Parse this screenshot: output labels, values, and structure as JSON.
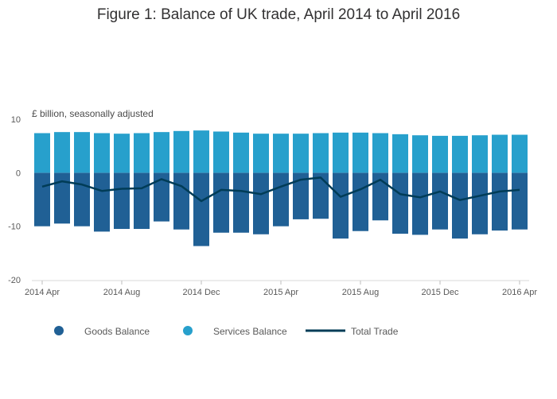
{
  "chart_data": {
    "type": "bar",
    "title": "Figure 1: Balance of UK trade, April 2014 to April 2016",
    "unit_label": "£ billion, seasonally adjusted",
    "ylim": [
      -20,
      10
    ],
    "y_ticks": [
      10,
      0,
      -10,
      -20
    ],
    "y_tick_labels": [
      "10",
      "0",
      "-10",
      "-20"
    ],
    "x_tick_labels": [
      "2014 Apr",
      "2014 Aug",
      "2014 Dec",
      "2015 Apr",
      "2015 Aug",
      "2015 Dec",
      "2016 Apr"
    ],
    "x_tick_indices": [
      0,
      4,
      8,
      12,
      16,
      20,
      24
    ],
    "categories": [
      "2014 Apr",
      "2014 May",
      "2014 Jun",
      "2014 Jul",
      "2014 Aug",
      "2014 Sep",
      "2014 Oct",
      "2014 Nov",
      "2014 Dec",
      "2015 Jan",
      "2015 Feb",
      "2015 Mar",
      "2015 Apr",
      "2015 May",
      "2015 Jun",
      "2015 Jul",
      "2015 Aug",
      "2015 Sep",
      "2015 Oct",
      "2015 Nov",
      "2015 Dec",
      "2016 Jan",
      "2016 Feb",
      "2016 Mar",
      "2016 Apr"
    ],
    "stacked": true,
    "grid": false,
    "legend_position": "bottom",
    "series": [
      {
        "name": "Goods Balance",
        "type": "bar",
        "color": "#206095",
        "values": [
          -10.0,
          -9.5,
          -10.0,
          -11.0,
          -10.5,
          -10.5,
          -9.1,
          -10.6,
          -13.7,
          -11.2,
          -11.2,
          -11.5,
          -10.0,
          -8.7,
          -8.6,
          -12.3,
          -10.9,
          -8.9,
          -11.4,
          -11.6,
          -10.6,
          -12.3,
          -11.5,
          -10.8,
          -10.6
        ]
      },
      {
        "name": "Services Balance",
        "type": "bar",
        "color": "#27a0cc",
        "values": [
          7.4,
          7.6,
          7.6,
          7.4,
          7.3,
          7.4,
          7.6,
          7.8,
          7.9,
          7.7,
          7.5,
          7.3,
          7.3,
          7.3,
          7.4,
          7.5,
          7.5,
          7.4,
          7.2,
          7.0,
          6.9,
          6.9,
          7.0,
          7.1,
          7.1
        ]
      },
      {
        "name": "Total Trade",
        "type": "line",
        "color": "#003c57",
        "values": [
          -2.6,
          -1.6,
          -2.2,
          -3.4,
          -3.0,
          -2.9,
          -1.2,
          -2.5,
          -5.3,
          -3.2,
          -3.4,
          -4.0,
          -2.6,
          -1.3,
          -0.9,
          -4.5,
          -3.1,
          -1.3,
          -4.0,
          -4.6,
          -3.5,
          -5.1,
          -4.3,
          -3.5,
          -3.2
        ]
      }
    ]
  }
}
